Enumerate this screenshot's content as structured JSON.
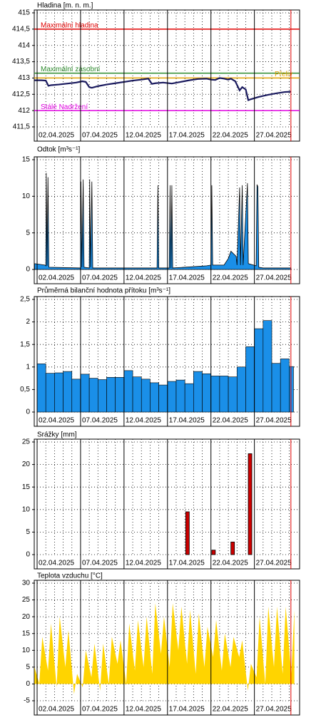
{
  "chart_data": [
    {
      "type": "line",
      "title": "Hladina [m. n. m.]",
      "color": "#1a1a5e",
      "x": [
        1.7,
        2.5,
        3.0,
        3.3,
        3.6,
        4.5,
        5.5,
        6.5,
        7.2,
        7.6,
        8.0,
        8.3,
        9,
        10,
        11,
        12,
        13,
        14,
        14.8,
        15.2,
        15.6,
        16.5,
        17.5,
        18.5,
        19.5,
        20.5,
        21.5,
        22.0,
        22.5,
        23,
        23.5,
        24,
        24.3,
        24.8,
        25.3,
        25.6,
        26.0,
        26.3,
        26.6,
        27.5,
        28.5,
        29.5,
        30.5,
        31.2
      ],
      "values": [
        412.93,
        412.93,
        412.92,
        412.76,
        412.78,
        412.8,
        412.83,
        412.86,
        412.9,
        412.88,
        412.72,
        412.7,
        412.75,
        412.8,
        412.84,
        412.88,
        412.92,
        412.95,
        412.98,
        412.82,
        412.84,
        412.86,
        412.83,
        412.88,
        412.93,
        412.97,
        412.98,
        412.95,
        412.94,
        413.0,
        412.98,
        412.95,
        412.98,
        412.9,
        412.62,
        412.72,
        412.65,
        412.32,
        412.35,
        412.42,
        412.48,
        412.53,
        412.57,
        412.58
      ],
      "reference_lines": [
        {
          "label": "Maximální hladina",
          "value": 414.5,
          "color": "#e00000",
          "align": "left"
        },
        {
          "label": "Maximální zásobní",
          "value": 413.15,
          "color": "#2e8b2e",
          "align": "left"
        },
        {
          "label": "Přeliv",
          "value": 413,
          "color": "#e0a000",
          "align": "right"
        },
        {
          "label": "Stálé Nadržení",
          "value": 412,
          "color": "#e000e0",
          "align": "left"
        }
      ],
      "ylim": [
        411.5,
        415
      ],
      "yticks": [
        {
          "value": 411.5,
          "label": "411,5"
        },
        412,
        {
          "value": 412.5,
          "label": "412,5"
        },
        413,
        {
          "value": 413.5,
          "label": "413,5"
        },
        414,
        {
          "value": 414.5,
          "label": "414,5"
        },
        415
      ],
      "xlim": [
        1.67,
        32.2
      ],
      "xticks": [
        {
          "value": 2,
          "label": "02.04.2025"
        },
        {
          "value": 7,
          "label": "07.04.2025"
        },
        {
          "value": 12,
          "label": "12.04.2025"
        },
        {
          "value": 17,
          "label": "17.04.2025"
        },
        {
          "value": 22,
          "label": "22.04.2025"
        },
        {
          "value": 27,
          "label": "27.04.2025"
        }
      ],
      "x_minor_ticks": [
        3,
        4,
        5,
        6,
        8,
        9,
        10,
        11,
        13,
        14,
        15,
        16,
        18,
        19,
        20,
        21,
        23,
        24,
        25,
        26,
        28,
        29,
        30,
        31
      ],
      "now_line": 31.2,
      "grid": true
    },
    {
      "type": "area",
      "title": "Odtok [m³s⁻¹]",
      "color": "#1a8fe8",
      "x": [
        1.7,
        2.9,
        3.0,
        3.05,
        3.15,
        3.25,
        3.35,
        7.0,
        7.05,
        7.15,
        7.3,
        7.4,
        8.0,
        8.05,
        8.15,
        8.3,
        8.4,
        15.8,
        15.9,
        16.0,
        17.2,
        17.3,
        17.4,
        17.5,
        17.6,
        21.5,
        22.0,
        22.1,
        22.2,
        23.5,
        24.0,
        24.3,
        24.9,
        25.0,
        25.3,
        25.4,
        25.6,
        25.7,
        26.2,
        26.3,
        27.2,
        27.3,
        27.4,
        27.5,
        28,
        31.2
      ],
      "values": [
        0.8,
        0.6,
        0.5,
        13.2,
        0.5,
        12.6,
        0.3,
        0.2,
        12.0,
        0.3,
        12.3,
        0.3,
        0.2,
        12.3,
        0.3,
        12.0,
        0.2,
        0.2,
        11.5,
        0.2,
        0.2,
        11.5,
        0.2,
        11.5,
        0.2,
        0.5,
        0.6,
        11.5,
        0.6,
        0.6,
        1.5,
        2.5,
        1.8,
        0.6,
        11.2,
        0.6,
        11.5,
        0.6,
        11.8,
        0.8,
        0.5,
        11.6,
        11.3,
        0.3,
        0.2,
        0.2
      ],
      "ylim": [
        0,
        15
      ],
      "yticks": [
        0,
        5,
        10,
        15
      ],
      "xlim": [
        1.67,
        32.2
      ],
      "xticks": [
        {
          "value": 2,
          "label": "02.04.2025"
        },
        {
          "value": 7,
          "label": "07.04.2025"
        },
        {
          "value": 12,
          "label": "12.04.2025"
        },
        {
          "value": 17,
          "label": "17.04.2025"
        },
        {
          "value": 22,
          "label": "22.04.2025"
        },
        {
          "value": 27,
          "label": "27.04.2025"
        }
      ],
      "x_minor_ticks": [
        3,
        4,
        5,
        6,
        8,
        9,
        10,
        11,
        13,
        14,
        15,
        16,
        18,
        19,
        20,
        21,
        23,
        24,
        25,
        26,
        28,
        29,
        30,
        31
      ],
      "now_line": 31.2,
      "grid": true
    },
    {
      "type": "histogram",
      "title": "Průměrná bilanční hodnota přítoku   [m³s⁻¹]",
      "color": "#1a8fe8",
      "bins": [
        2,
        3,
        4,
        5,
        6,
        7,
        8,
        9,
        10,
        11,
        12,
        13,
        14,
        15,
        16,
        17,
        18,
        19,
        20,
        21,
        22,
        23,
        24,
        25,
        26,
        27,
        28,
        29,
        30,
        31,
        31.5
      ],
      "values": [
        1.07,
        0.86,
        0.87,
        0.9,
        0.73,
        0.84,
        0.75,
        0.72,
        0.77,
        0.77,
        0.92,
        0.78,
        0.73,
        0.65,
        0.6,
        0.68,
        0.71,
        0.63,
        0.9,
        0.85,
        0.8,
        0.8,
        0.78,
        1.0,
        1.45,
        1.85,
        2.03,
        1.08,
        1.18,
        1.01
      ],
      "ylim": [
        0,
        2.5
      ],
      "yticks": [
        0,
        {
          "value": 0.5,
          "label": "0,5"
        },
        1,
        {
          "value": 1.5,
          "label": "1,5"
        },
        2,
        {
          "value": 2.5,
          "label": "2,5"
        }
      ],
      "xlim": [
        1.67,
        32.2
      ],
      "xticks": [
        {
          "value": 2,
          "label": "02.04.2025"
        },
        {
          "value": 7,
          "label": "07.04.2025"
        },
        {
          "value": 12,
          "label": "12.04.2025"
        },
        {
          "value": 17,
          "label": "17.04.2025"
        },
        {
          "value": 22,
          "label": "22.04.2025"
        },
        {
          "value": 27,
          "label": "27.04.2025"
        }
      ],
      "x_minor_ticks": [
        3,
        4,
        5,
        6,
        8,
        9,
        10,
        11,
        13,
        14,
        15,
        16,
        18,
        19,
        20,
        21,
        23,
        24,
        25,
        26,
        28,
        29,
        30,
        31
      ],
      "now_line": 31.2,
      "grid": true
    },
    {
      "type": "bar",
      "title": "Srážky [mm]",
      "color": "#cc0000",
      "x": [
        19.3,
        22.3,
        24.5,
        26.5
      ],
      "values": [
        9.5,
        1.0,
        2.8,
        22.4
      ],
      "ylim": [
        0,
        25
      ],
      "yticks": [
        0,
        5,
        10,
        15,
        20,
        25
      ],
      "xlim": [
        1.67,
        32.2
      ],
      "xticks": [
        {
          "value": 2,
          "label": "02.04.2025"
        },
        {
          "value": 7,
          "label": "07.04.2025"
        },
        {
          "value": 12,
          "label": "12.04.2025"
        },
        {
          "value": 17,
          "label": "17.04.2025"
        },
        {
          "value": 22,
          "label": "22.04.2025"
        },
        {
          "value": 27,
          "label": "27.04.2025"
        }
      ],
      "x_minor_ticks": [
        3,
        4,
        5,
        6,
        8,
        9,
        10,
        11,
        13,
        14,
        15,
        16,
        18,
        19,
        20,
        21,
        23,
        24,
        25,
        26,
        28,
        29,
        30,
        31
      ],
      "now_line": 31.2,
      "grid": true
    },
    {
      "type": "area",
      "title": "Teplota vzduchu [°C]",
      "color": "#ffd400",
      "x": [
        1.7,
        2.25,
        2.6,
        3.25,
        3.6,
        4.25,
        4.6,
        5.25,
        5.6,
        6.25,
        6.6,
        7.25,
        7.6,
        8.25,
        8.6,
        9.25,
        9.6,
        10.25,
        10.6,
        11.25,
        11.6,
        12.25,
        12.6,
        13.25,
        13.6,
        14.25,
        14.6,
        15.25,
        15.6,
        16.25,
        16.6,
        17.25,
        17.6,
        18.25,
        18.6,
        19.25,
        19.6,
        20.25,
        20.6,
        21.25,
        21.6,
        22.25,
        22.6,
        23.25,
        23.6,
        24.25,
        24.6,
        25.25,
        25.6,
        26.25,
        26.6,
        27.25,
        27.6,
        28.25,
        28.6,
        29.25,
        29.6,
        30.25,
        30.6,
        31.25,
        31.6
      ],
      "values": [
        5,
        0,
        14,
        4,
        18,
        -1,
        20,
        5,
        16,
        -3,
        3,
        -1,
        10,
        2,
        12,
        -2,
        12,
        0,
        14,
        6,
        13,
        0,
        18,
        4,
        19,
        5,
        20,
        3,
        24,
        9,
        20,
        5,
        24,
        10,
        23,
        6,
        22,
        3,
        21,
        5,
        17,
        8,
        19,
        4,
        15,
        5,
        14,
        8,
        13,
        -2,
        6,
        2,
        20,
        0,
        23,
        5,
        23,
        3,
        23,
        3,
        22
      ],
      "ylim": [
        -5,
        30
      ],
      "yticks": [
        -5,
        0,
        5,
        10,
        15,
        20,
        25,
        30
      ],
      "xlim": [
        1.67,
        32.2
      ],
      "xticks": [
        {
          "value": 2,
          "label": "02.04.2025"
        },
        {
          "value": 7,
          "label": "07.04.2025"
        },
        {
          "value": 12,
          "label": "12.04.2025"
        },
        {
          "value": 17,
          "label": "17.04.2025"
        },
        {
          "value": 22,
          "label": "22.04.2025"
        },
        {
          "value": 27,
          "label": "27.04.2025"
        }
      ],
      "x_minor_ticks": [
        3,
        4,
        5,
        6,
        8,
        9,
        10,
        11,
        13,
        14,
        15,
        16,
        18,
        19,
        20,
        21,
        23,
        24,
        25,
        26,
        28,
        29,
        30,
        31
      ],
      "now_line": 31.2,
      "grid": true
    }
  ]
}
